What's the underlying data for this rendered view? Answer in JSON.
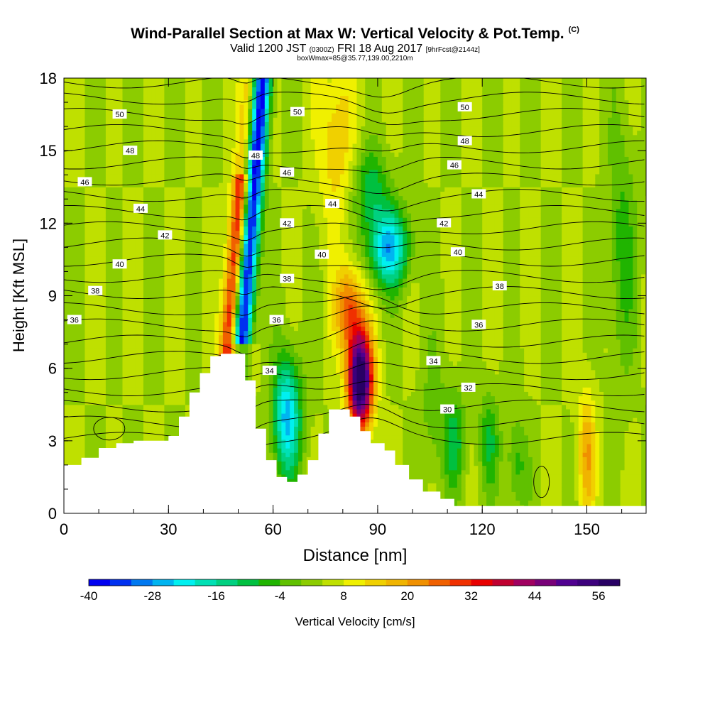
{
  "header": {
    "title": "Wind-Parallel Section at Max W: Vertical Velocity & Pot.Temp.",
    "copyright": "(C)",
    "subtitle_main": "Valid 1200 JST",
    "subtitle_utc": "(0300Z)",
    "subtitle_date": "FRI 18 Aug 2017",
    "subtitle_fcst": "[9hrFcst@2144z]",
    "box_info": "boxWmax=85@35.77,139.00,2210m"
  },
  "chart_data": {
    "type": "heatmap",
    "title": "Wind-Parallel Section at Max W: Vertical Velocity & Pot.Temp.",
    "xlabel": "Distance [nm]",
    "ylabel": "Height [Kft MSL]",
    "xlim": [
      0,
      167
    ],
    "ylim": [
      0,
      18
    ],
    "xticks": [
      "0",
      "30",
      "60",
      "90",
      "120",
      "150"
    ],
    "yticks": [
      "0",
      "3",
      "6",
      "9",
      "12",
      "15",
      "18"
    ],
    "colorbar": {
      "label": "Vertical Velocity [cm/s]",
      "min": -40,
      "max": 60,
      "step": 4,
      "tick_labels": [
        "-40",
        "-28",
        "-16",
        "-4",
        "8",
        "20",
        "32",
        "44",
        "56"
      ],
      "colors": [
        "#0000f0",
        "#0030f0",
        "#0078f0",
        "#00b4f0",
        "#00f0f0",
        "#00e0b4",
        "#00d080",
        "#00c040",
        "#20b400",
        "#60c000",
        "#8ccc00",
        "#bfe000",
        "#f0f000",
        "#f0d000",
        "#f0b400",
        "#f09000",
        "#f06000",
        "#f03000",
        "#e80000",
        "#c00030",
        "#a00060",
        "#780078",
        "#500090",
        "#3c007c",
        "#280064"
      ]
    },
    "terrain_height_kft": [
      {
        "x": 0,
        "h": 2.0
      },
      {
        "x": 5,
        "h": 2.3
      },
      {
        "x": 10,
        "h": 2.7
      },
      {
        "x": 15,
        "h": 2.9
      },
      {
        "x": 20,
        "h": 3.0
      },
      {
        "x": 25,
        "h": 3.0
      },
      {
        "x": 30,
        "h": 3.2
      },
      {
        "x": 33,
        "h": 4.0
      },
      {
        "x": 36,
        "h": 5.0
      },
      {
        "x": 39,
        "h": 5.8
      },
      {
        "x": 42,
        "h": 6.5
      },
      {
        "x": 45,
        "h": 6.6
      },
      {
        "x": 48,
        "h": 6.6
      },
      {
        "x": 52,
        "h": 5.5
      },
      {
        "x": 55,
        "h": 3.5
      },
      {
        "x": 58,
        "h": 2.2
      },
      {
        "x": 61,
        "h": 1.5
      },
      {
        "x": 64,
        "h": 1.3
      },
      {
        "x": 67,
        "h": 1.6
      },
      {
        "x": 70,
        "h": 2.2
      },
      {
        "x": 73,
        "h": 3.3
      },
      {
        "x": 76,
        "h": 4.3
      },
      {
        "x": 79,
        "h": 4.3
      },
      {
        "x": 82,
        "h": 4.0
      },
      {
        "x": 85,
        "h": 3.4
      },
      {
        "x": 88,
        "h": 2.9
      },
      {
        "x": 92,
        "h": 2.6
      },
      {
        "x": 95,
        "h": 2.0
      },
      {
        "x": 99,
        "h": 1.4
      },
      {
        "x": 103,
        "h": 0.9
      },
      {
        "x": 108,
        "h": 0.6
      },
      {
        "x": 112,
        "h": 0.3
      },
      {
        "x": 120,
        "h": 0.3
      },
      {
        "x": 140,
        "h": 0.3
      },
      {
        "x": 167,
        "h": 0.3
      }
    ],
    "theta_contour_labels": [
      {
        "label": "30",
        "x": 110,
        "y": 4.3
      },
      {
        "label": "32",
        "x": 116,
        "y": 5.2
      },
      {
        "label": "34",
        "x": 59,
        "y": 5.9
      },
      {
        "label": "34",
        "x": 106,
        "y": 6.3
      },
      {
        "label": "36",
        "x": 3,
        "y": 8.0
      },
      {
        "label": "36",
        "x": 61,
        "y": 8.0
      },
      {
        "label": "36",
        "x": 119,
        "y": 7.8
      },
      {
        "label": "38",
        "x": 9,
        "y": 9.2
      },
      {
        "label": "38",
        "x": 64,
        "y": 9.7
      },
      {
        "label": "38",
        "x": 125,
        "y": 9.4
      },
      {
        "label": "40",
        "x": 16,
        "y": 10.3
      },
      {
        "label": "40",
        "x": 74,
        "y": 10.7
      },
      {
        "label": "40",
        "x": 113,
        "y": 10.8
      },
      {
        "label": "42",
        "x": 29,
        "y": 11.5
      },
      {
        "label": "42",
        "x": 64,
        "y": 12.0
      },
      {
        "label": "42",
        "x": 109,
        "y": 12.0
      },
      {
        "label": "44",
        "x": 22,
        "y": 12.6
      },
      {
        "label": "44",
        "x": 77,
        "y": 12.8
      },
      {
        "label": "44",
        "x": 119,
        "y": 13.2
      },
      {
        "label": "46",
        "x": 6,
        "y": 13.7
      },
      {
        "label": "46",
        "x": 64,
        "y": 14.1
      },
      {
        "label": "46",
        "x": 112,
        "y": 14.4
      },
      {
        "label": "48",
        "x": 19,
        "y": 15.0
      },
      {
        "label": "48",
        "x": 55,
        "y": 14.8
      },
      {
        "label": "48",
        "x": 115,
        "y": 15.4
      },
      {
        "label": "50",
        "x": 16,
        "y": 16.5
      },
      {
        "label": "50",
        "x": 67,
        "y": 16.6
      },
      {
        "label": "50",
        "x": 115,
        "y": 16.8
      }
    ]
  }
}
